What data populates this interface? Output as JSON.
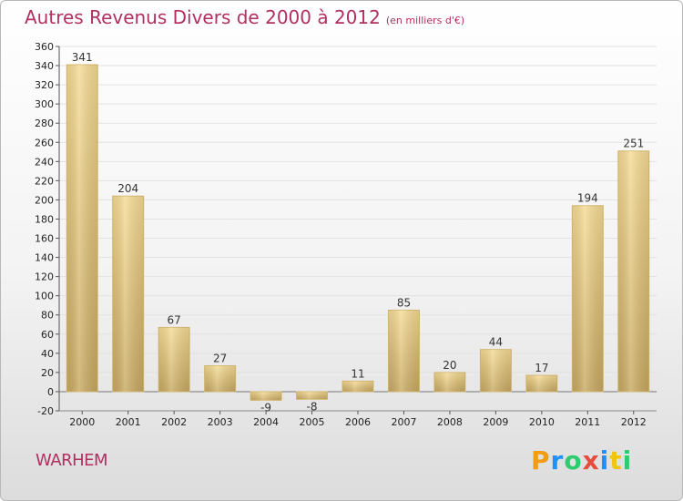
{
  "header": {
    "title": "Autres Revenus Divers de 2000 à 2012",
    "unit": "(en milliers d'€)"
  },
  "footer": {
    "commune": "WARHEM",
    "logo_letters": [
      "P",
      "r",
      "o",
      "x",
      "i",
      "t",
      "i"
    ],
    "logo_colors": [
      "#f39c12",
      "#1e90ff",
      "#2ecc71",
      "#e74c3c",
      "#1e90ff",
      "#f1c40f",
      "#2ecc71"
    ]
  },
  "chart_data": {
    "type": "bar",
    "title": "Autres Revenus Divers de 2000 à 2012",
    "subtitle": "(en milliers d'€)",
    "categories": [
      "2000",
      "2001",
      "2002",
      "2003",
      "2004",
      "2005",
      "2006",
      "2007",
      "2008",
      "2009",
      "2010",
      "2011",
      "2012"
    ],
    "values": [
      341,
      204,
      67,
      27,
      -9,
      -8,
      11,
      85,
      20,
      44,
      17,
      194,
      251
    ],
    "ylim": [
      -20,
      360
    ],
    "yticks": [
      -20,
      0,
      20,
      40,
      60,
      80,
      100,
      120,
      140,
      160,
      180,
      200,
      220,
      240,
      260,
      280,
      300,
      320,
      340,
      360
    ],
    "grid": true,
    "bar_color": "#e8c87a"
  }
}
